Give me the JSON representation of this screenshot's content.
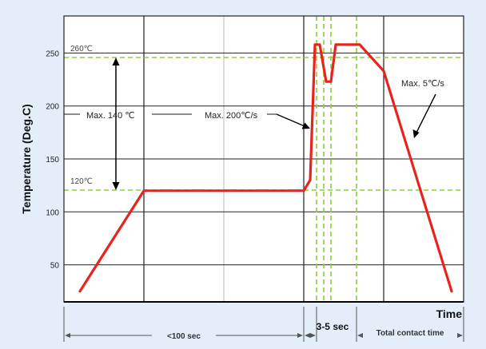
{
  "chart_data": {
    "type": "line",
    "title": "",
    "ylabel": "Temperature (Deg.C)",
    "xlabel": "Time",
    "ylim": [
      15,
      285
    ],
    "yticks": [
      50,
      100,
      150,
      200,
      250
    ],
    "grid": true,
    "series": [
      {
        "color": "#e8231c",
        "x": [
          0.2,
          1.0,
          2.0,
          3.0,
          3.08,
          3.14,
          3.2,
          3.28,
          3.34,
          3.4,
          3.7,
          4.0,
          4.85
        ],
        "y": [
          25,
          120,
          120,
          120,
          130,
          258,
          258,
          223,
          223,
          258,
          258,
          233,
          25
        ]
      }
    ],
    "reference_lines": [
      {
        "label": "260℃",
        "y": 258,
        "color": "#8ccf3c"
      },
      {
        "label": "120℃",
        "y": 120,
        "color": "#8ccf3c"
      }
    ],
    "annotations": [
      {
        "text": "Max. 140 ℃"
      },
      {
        "text": "Max. 200℃/s"
      },
      {
        "text": "Max. 5℃/s"
      }
    ],
    "time_spans": [
      {
        "label": "<100 sec"
      },
      {
        "label": "3-5 sec"
      },
      {
        "label": "Total contact time"
      }
    ]
  }
}
